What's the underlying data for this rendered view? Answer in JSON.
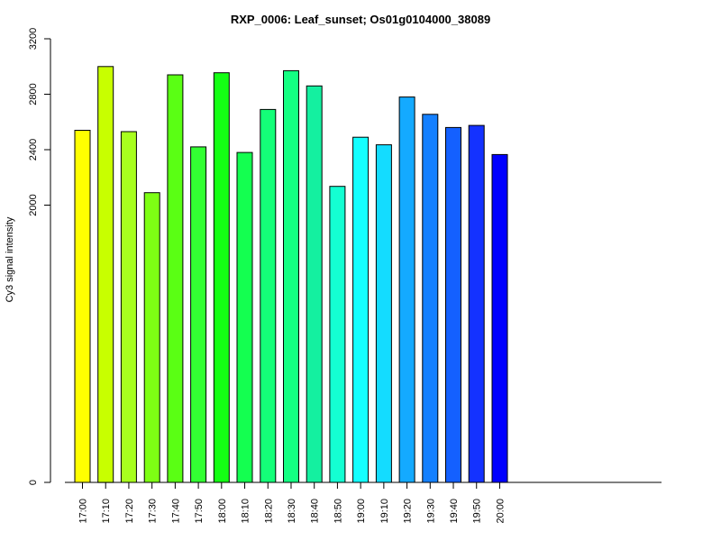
{
  "chart_data": {
    "type": "bar",
    "title": "RXP_0006: Leaf_sunset; Os01g0104000_38089",
    "xlabel": "",
    "ylabel": "Cy3 signal intensity",
    "ylim": [
      0,
      3200
    ],
    "yticks": [
      0,
      2000,
      2400,
      2800,
      3200
    ],
    "grid": false,
    "categories": [
      "17:00",
      "17:10",
      "17:20",
      "17:30",
      "17:40",
      "17:50",
      "18:00",
      "18:10",
      "18:20",
      "18:30",
      "18:40",
      "18:50",
      "19:00",
      "19:10",
      "19:20",
      "19:30",
      "19:40",
      "19:50",
      "20:00"
    ],
    "values": [
      2540,
      3000,
      2530,
      2090,
      2940,
      2420,
      2955,
      2380,
      2690,
      2970,
      2860,
      2135,
      2490,
      2435,
      2780,
      2655,
      2560,
      2575,
      2365
    ],
    "colors": [
      "#FFFF00",
      "#C8FF00",
      "#A8FF1E",
      "#7EFF14",
      "#5AFF14",
      "#33FF33",
      "#14FF14",
      "#14FF50",
      "#14FF78",
      "#14FF82",
      "#14F0A0",
      "#14FFD2",
      "#14FFFF",
      "#14DCFF",
      "#14AAFF",
      "#1480FF",
      "#1460FF",
      "#1432FF",
      "#0000FF"
    ]
  }
}
